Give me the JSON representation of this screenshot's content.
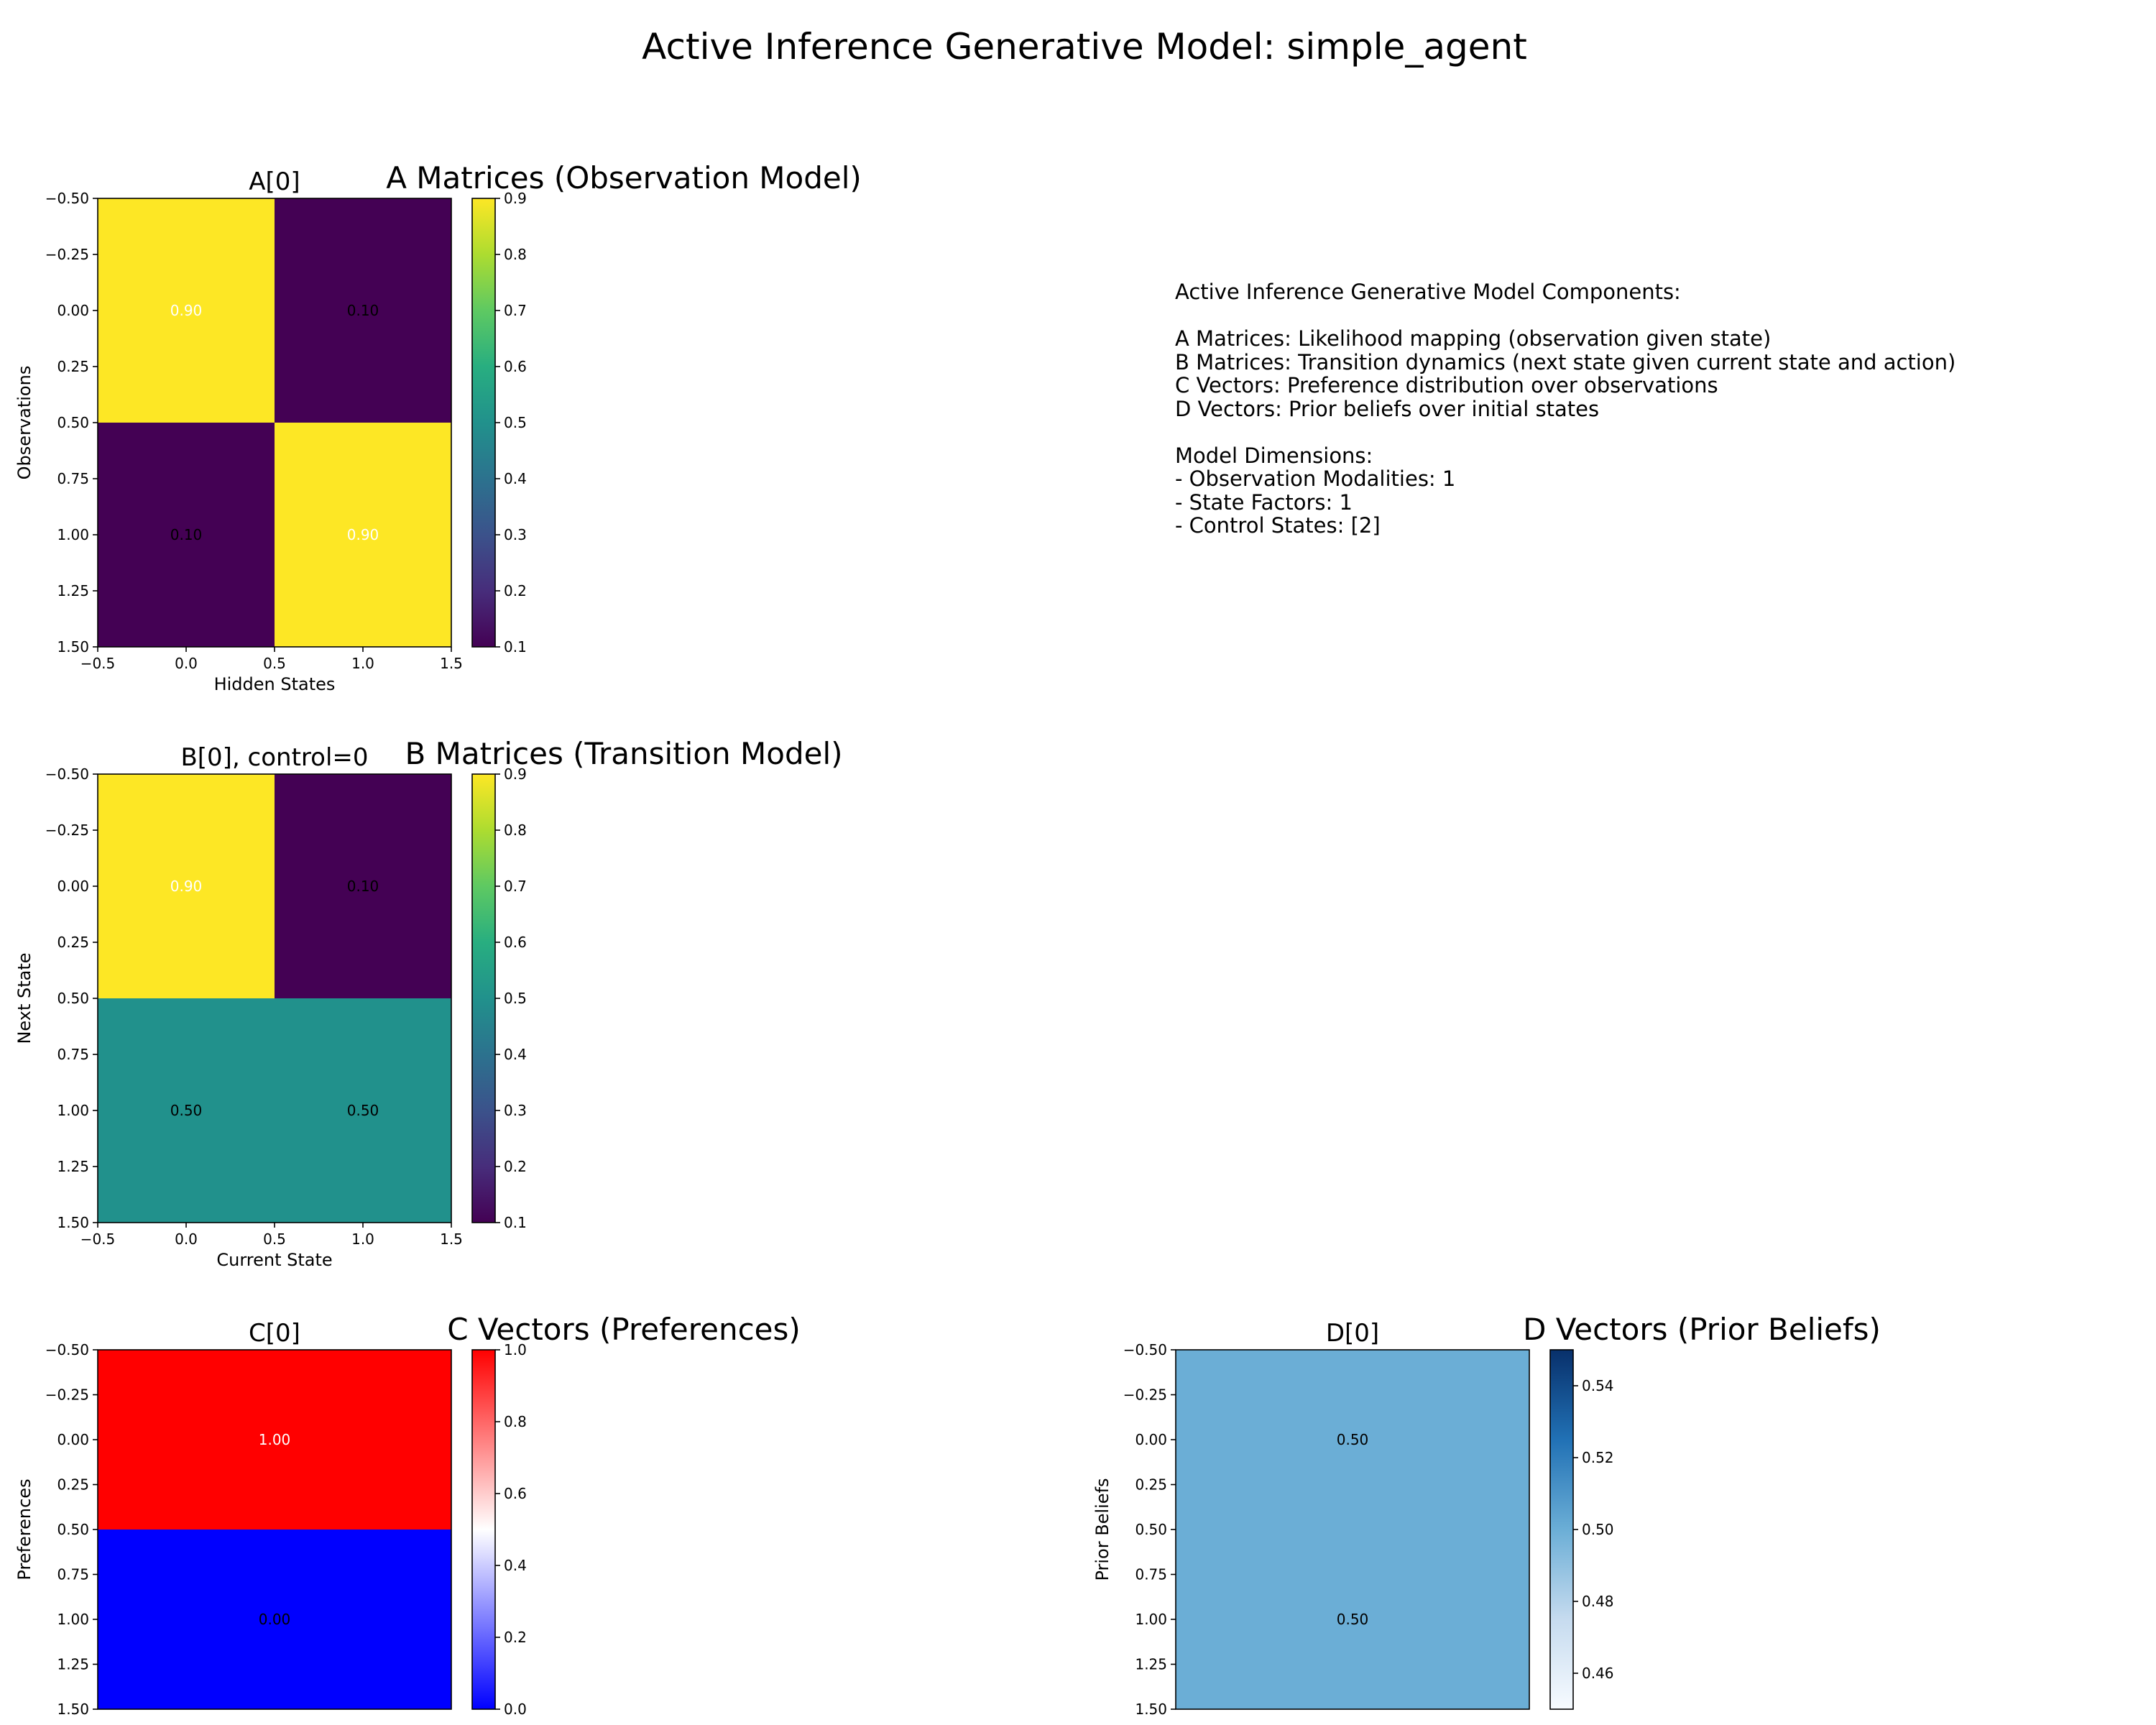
{
  "figure_title": "Active Inference Generative Model: simple_agent",
  "info_text": [
    "Active Inference Generative Model Components:",
    "",
    "A Matrices: Likelihood mapping (observation given state)",
    "B Matrices: Transition dynamics (next state given current state and action)",
    "C Vectors: Preference distribution over observations",
    "D Vectors: Prior beliefs over initial states",
    "",
    "Model Dimensions:",
    "- Observation Modalities: 1",
    "- State Factors: 1",
    "- Control States: [2]"
  ],
  "chart_data": [
    {
      "type": "heatmap",
      "id": "A",
      "title": "A[0]",
      "section_title": "A Matrices (Observation Model)",
      "xlabel": "Hidden States",
      "ylabel": "Observations",
      "values": [
        [
          0.9,
          0.1
        ],
        [
          0.1,
          0.9
        ]
      ],
      "cell_labels": [
        [
          "0.90",
          "0.10"
        ],
        [
          "0.10",
          "0.90"
        ]
      ],
      "xlim": [
        -0.5,
        1.5
      ],
      "ylim": [
        1.5,
        -0.5
      ],
      "xticks": [
        -0.5,
        0.0,
        0.5,
        1.0,
        1.5
      ],
      "xtick_labels": [
        "−0.5",
        "0.0",
        "0.5",
        "1.0",
        "1.5"
      ],
      "yticks": [
        -0.5,
        -0.25,
        0.0,
        0.25,
        0.5,
        0.75,
        1.0,
        1.25,
        1.5
      ],
      "ytick_labels": [
        "−0.50",
        "−0.25",
        "0.00",
        "0.25",
        "0.50",
        "0.75",
        "1.00",
        "1.25",
        "1.50"
      ],
      "colormap": "viridis",
      "color_range": [
        0.1,
        0.9
      ],
      "colorbar_ticks": [
        0.1,
        0.2,
        0.3,
        0.4,
        0.5,
        0.6,
        0.7,
        0.8,
        0.9
      ],
      "colorbar_labels": [
        "0.1",
        "0.2",
        "0.3",
        "0.4",
        "0.5",
        "0.6",
        "0.7",
        "0.8",
        "0.9"
      ],
      "cell_colors": [
        [
          "#fde725",
          "#440154"
        ],
        [
          "#440154",
          "#fde725"
        ]
      ],
      "cell_text_colors": [
        [
          "#ffffff",
          "#000000"
        ],
        [
          "#000000",
          "#ffffff"
        ]
      ]
    },
    {
      "type": "heatmap",
      "id": "B",
      "title": "B[0], control=0",
      "section_title": "B Matrices (Transition Model)",
      "xlabel": "Current State",
      "ylabel": "Next State",
      "values": [
        [
          0.9,
          0.1
        ],
        [
          0.5,
          0.5
        ]
      ],
      "cell_labels": [
        [
          "0.90",
          "0.10"
        ],
        [
          "0.50",
          "0.50"
        ]
      ],
      "xlim": [
        -0.5,
        1.5
      ],
      "ylim": [
        1.5,
        -0.5
      ],
      "xticks": [
        -0.5,
        0.0,
        0.5,
        1.0,
        1.5
      ],
      "xtick_labels": [
        "−0.5",
        "0.0",
        "0.5",
        "1.0",
        "1.5"
      ],
      "yticks": [
        -0.5,
        -0.25,
        0.0,
        0.25,
        0.5,
        0.75,
        1.0,
        1.25,
        1.5
      ],
      "ytick_labels": [
        "−0.50",
        "−0.25",
        "0.00",
        "0.25",
        "0.50",
        "0.75",
        "1.00",
        "1.25",
        "1.50"
      ],
      "colormap": "viridis",
      "color_range": [
        0.1,
        0.9
      ],
      "colorbar_ticks": [
        0.1,
        0.2,
        0.3,
        0.4,
        0.5,
        0.6,
        0.7,
        0.8,
        0.9
      ],
      "colorbar_labels": [
        "0.1",
        "0.2",
        "0.3",
        "0.4",
        "0.5",
        "0.6",
        "0.7",
        "0.8",
        "0.9"
      ],
      "cell_colors": [
        [
          "#fde725",
          "#440154"
        ],
        [
          "#21918c",
          "#21918c"
        ]
      ],
      "cell_text_colors": [
        [
          "#ffffff",
          "#000000"
        ],
        [
          "#000000",
          "#000000"
        ]
      ]
    },
    {
      "type": "heatmap",
      "id": "C",
      "title": "C[0]",
      "section_title": "C Vectors (Preferences)",
      "xlabel": "",
      "ylabel": "Preferences",
      "values": [
        [
          1.0
        ],
        [
          0.0
        ]
      ],
      "cell_labels": [
        [
          "1.00"
        ],
        [
          "0.00"
        ]
      ],
      "xlim": [
        -0.5,
        0.5
      ],
      "ylim": [
        1.5,
        -0.5
      ],
      "xticks": [],
      "xtick_labels": [],
      "yticks": [
        -0.5,
        -0.25,
        0.0,
        0.25,
        0.5,
        0.75,
        1.0,
        1.25,
        1.5
      ],
      "ytick_labels": [
        "−0.50",
        "−0.25",
        "0.00",
        "0.25",
        "0.50",
        "0.75",
        "1.00",
        "1.25",
        "1.50"
      ],
      "colormap": "bwr",
      "color_range": [
        0.0,
        1.0
      ],
      "colorbar_ticks": [
        0.0,
        0.2,
        0.4,
        0.6,
        0.8,
        1.0
      ],
      "colorbar_labels": [
        "0.0",
        "0.2",
        "0.4",
        "0.6",
        "0.8",
        "1.0"
      ],
      "cell_colors": [
        [
          "#ff0000"
        ],
        [
          "#0000ff"
        ]
      ],
      "cell_text_colors": [
        [
          "#ffffff"
        ],
        [
          "#000000"
        ]
      ]
    },
    {
      "type": "heatmap",
      "id": "D",
      "title": "D[0]",
      "section_title": "D Vectors (Prior Beliefs)",
      "xlabel": "",
      "ylabel": "Prior Beliefs",
      "values": [
        [
          0.5
        ],
        [
          0.5
        ]
      ],
      "cell_labels": [
        [
          "0.50"
        ],
        [
          "0.50"
        ]
      ],
      "xlim": [
        -0.5,
        0.5
      ],
      "ylim": [
        1.5,
        -0.5
      ],
      "xticks": [],
      "xtick_labels": [],
      "yticks": [
        -0.5,
        -0.25,
        0.0,
        0.25,
        0.5,
        0.75,
        1.0,
        1.25,
        1.5
      ],
      "ytick_labels": [
        "−0.50",
        "−0.25",
        "0.00",
        "0.25",
        "0.50",
        "0.75",
        "1.00",
        "1.25",
        "1.50"
      ],
      "colormap": "Blues",
      "color_range": [
        0.45,
        0.55
      ],
      "colorbar_ticks": [
        0.46,
        0.48,
        0.5,
        0.52,
        0.54
      ],
      "colorbar_labels": [
        "0.46",
        "0.48",
        "0.50",
        "0.52",
        "0.54"
      ],
      "cell_colors": [
        [
          "#6baed6"
        ],
        [
          "#6baed6"
        ]
      ],
      "cell_text_colors": [
        [
          "#000000"
        ],
        [
          "#000000"
        ]
      ]
    }
  ]
}
